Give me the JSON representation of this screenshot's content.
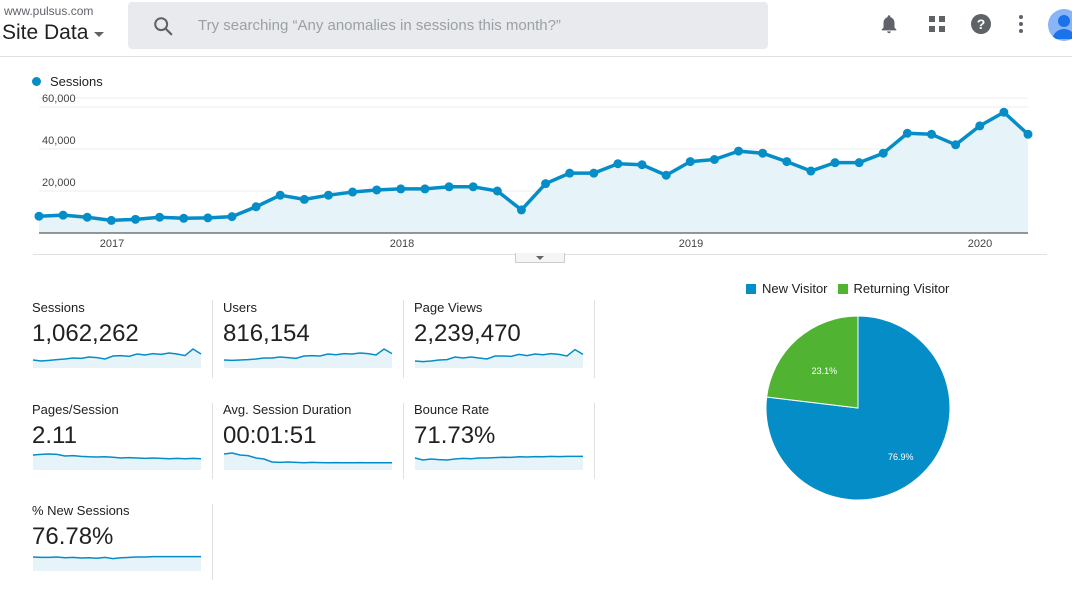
{
  "header": {
    "account": "www.pulsus.com",
    "property": "Site Data",
    "search_placeholder": "Try searching “Any anomalies in sessions this month?”",
    "icons": [
      "notifications-icon",
      "apps-grid-icon",
      "help-icon",
      "more-vert-icon",
      "avatar-icon"
    ]
  },
  "colors": {
    "accent": "#058dc7",
    "area_fill": "#e6f4fa",
    "new_visitor": "#058dc7",
    "returning_visitor": "#50b432"
  },
  "chart_data": [
    {
      "type": "line",
      "legend": [
        "Sessions"
      ],
      "x_tick_labels": [
        "2017",
        "2018",
        "2019",
        "2020"
      ],
      "y_tick_labels": [
        "20,000",
        "40,000",
        "60,000"
      ],
      "ylim": [
        0,
        60000
      ],
      "grid": true,
      "series": [
        {
          "name": "Sessions",
          "values": [
            8000,
            8500,
            7500,
            6000,
            6500,
            7500,
            7000,
            7200,
            7800,
            12500,
            18000,
            16000,
            18000,
            19500,
            20500,
            21000,
            21000,
            22000,
            22000,
            20000,
            11000,
            23500,
            28500,
            28500,
            33000,
            32500,
            27500,
            34000,
            35000,
            39000,
            38000,
            34000,
            29500,
            33500,
            33500,
            38000,
            47500,
            47000,
            42000,
            51000,
            57500,
            47000
          ]
        }
      ]
    },
    {
      "type": "pie",
      "legend": [
        "New Visitor",
        "Returning Visitor"
      ],
      "slices": [
        {
          "label": "New Visitor",
          "value": 76.9,
          "text": "76.9%"
        },
        {
          "label": "Returning Visitor",
          "value": 23.1,
          "text": "23.1%"
        }
      ]
    }
  ],
  "metrics": [
    {
      "name": "Sessions",
      "value": "1,062,262",
      "spark": [
        0.4,
        0.35,
        0.38,
        0.42,
        0.45,
        0.5,
        0.48,
        0.55,
        0.52,
        0.45,
        0.6,
        0.62,
        0.58,
        0.7,
        0.65,
        0.72,
        0.68,
        0.75,
        0.7,
        0.62,
        0.95,
        0.7
      ]
    },
    {
      "name": "Users",
      "value": "816,154",
      "spark": [
        0.4,
        0.38,
        0.4,
        0.42,
        0.45,
        0.5,
        0.5,
        0.55,
        0.52,
        0.48,
        0.6,
        0.62,
        0.6,
        0.7,
        0.66,
        0.72,
        0.7,
        0.75,
        0.72,
        0.65,
        0.95,
        0.72
      ]
    },
    {
      "name": "Page Views",
      "value": "2,239,470",
      "spark": [
        0.35,
        0.32,
        0.35,
        0.4,
        0.42,
        0.55,
        0.5,
        0.55,
        0.5,
        0.45,
        0.6,
        0.6,
        0.58,
        0.68,
        0.62,
        0.7,
        0.66,
        0.72,
        0.68,
        0.6,
        0.92,
        0.68
      ]
    },
    {
      "name": "Pages/Session",
      "value": "2.11",
      "spark": [
        0.75,
        0.78,
        0.8,
        0.78,
        0.7,
        0.72,
        0.68,
        0.66,
        0.65,
        0.66,
        0.64,
        0.6,
        0.62,
        0.6,
        0.58,
        0.6,
        0.58,
        0.56,
        0.58,
        0.56,
        0.58,
        0.56
      ]
    },
    {
      "name": "Avg. Session Duration",
      "value": "00:01:51",
      "spark": [
        0.8,
        0.85,
        0.75,
        0.72,
        0.6,
        0.55,
        0.4,
        0.38,
        0.4,
        0.38,
        0.36,
        0.38,
        0.37,
        0.36,
        0.37,
        0.36,
        0.36,
        0.37,
        0.36,
        0.36,
        0.36,
        0.36
      ]
    },
    {
      "name": "Bounce Rate",
      "value": "71.73%",
      "spark": [
        0.6,
        0.5,
        0.55,
        0.52,
        0.5,
        0.55,
        0.58,
        0.56,
        0.6,
        0.6,
        0.62,
        0.64,
        0.63,
        0.66,
        0.65,
        0.67,
        0.66,
        0.68,
        0.67,
        0.68,
        0.68,
        0.68
      ]
    },
    {
      "name": "% New Sessions",
      "value": "76.78%",
      "spark": [
        0.7,
        0.68,
        0.68,
        0.7,
        0.66,
        0.68,
        0.65,
        0.66,
        0.64,
        0.68,
        0.62,
        0.66,
        0.68,
        0.7,
        0.7,
        0.72,
        0.72,
        0.72,
        0.72,
        0.72,
        0.72,
        0.72
      ]
    }
  ]
}
